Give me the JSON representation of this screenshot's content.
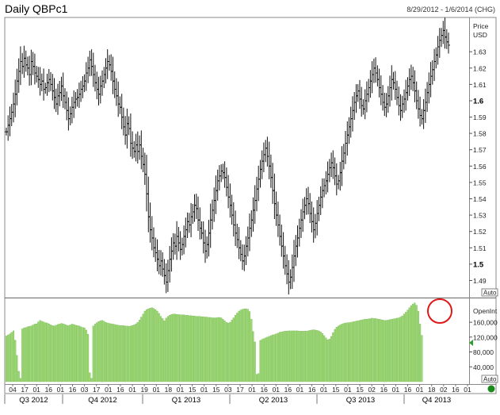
{
  "header": {
    "title": "Daily QBPc1",
    "date_range": "8/29/2012 - 1/6/2014 (CHG)"
  },
  "price_panel": {
    "unit_label_1": "Price",
    "unit_label_2": "USD",
    "auto_label": "Auto"
  },
  "volume_panel": {
    "label": "OpenInt",
    "auto_label": "Auto",
    "colors": {
      "bars": "#9bd870",
      "bar_edge": "#6db04a",
      "circle": "#e01818",
      "marker": "#2e9e2e",
      "dot": "#1a8a1a"
    }
  },
  "chart_data": [
    {
      "type": "ohlc",
      "title": "Daily QBPc1",
      "ylabel": "Price USD",
      "ylim": [
        1.481,
        1.65
      ],
      "y_ticks": [
        "1.63",
        "1.62",
        "1.61",
        "1.6",
        "1.59",
        "1.58",
        "1.57",
        "1.56",
        "1.55",
        "1.54",
        "1.53",
        "1.52",
        "1.51",
        "1.5",
        "1.49"
      ],
      "y_ticks_bold": [
        "1.6",
        "1.5"
      ],
      "x_day_labels": [
        "04",
        "17",
        "01",
        "16",
        "01",
        "16",
        "03",
        "17",
        "01",
        "16",
        "01",
        "19",
        "01",
        "18",
        "01",
        "15",
        "01",
        "15",
        "03",
        "17",
        "01",
        "16",
        "01",
        "16",
        "01",
        "16",
        "01",
        "15",
        "01",
        "15",
        "02",
        "16",
        "01",
        "16",
        "01",
        "18",
        "02",
        "16",
        "01"
      ],
      "x_quarter_labels": [
        "Q3 2012",
        "Q4 2012",
        "Q1 2013",
        "Q2 2013",
        "Q3 2013",
        "Q4 2013"
      ],
      "closes": [
        1.581,
        1.585,
        1.589,
        1.593,
        1.598,
        1.604,
        1.612,
        1.618,
        1.624,
        1.621,
        1.626,
        1.622,
        1.62,
        1.616,
        1.624,
        1.621,
        1.617,
        1.615,
        1.613,
        1.61,
        1.612,
        1.607,
        1.608,
        1.611,
        1.613,
        1.61,
        1.606,
        1.602,
        1.598,
        1.603,
        1.605,
        1.609,
        1.603,
        1.599,
        1.594,
        1.589,
        1.592,
        1.596,
        1.599,
        1.601,
        1.602,
        1.604,
        1.607,
        1.609,
        1.612,
        1.617,
        1.62,
        1.625,
        1.621,
        1.616,
        1.611,
        1.607,
        1.604,
        1.609,
        1.612,
        1.616,
        1.62,
        1.624,
        1.622,
        1.618,
        1.612,
        1.607,
        1.603,
        1.598,
        1.596,
        1.59,
        1.584,
        1.579,
        1.586,
        1.583,
        1.574,
        1.571,
        1.569,
        1.573,
        1.569,
        1.573,
        1.566,
        1.561,
        1.555,
        1.543,
        1.529,
        1.521,
        1.516,
        1.51,
        1.507,
        1.503,
        1.499,
        1.502,
        1.497,
        1.493,
        1.489,
        1.496,
        1.503,
        1.508,
        1.513,
        1.511,
        1.517,
        1.513,
        1.509,
        1.512,
        1.517,
        1.521,
        1.526,
        1.524,
        1.529,
        1.532,
        1.536,
        1.534,
        1.527,
        1.522,
        1.519,
        1.513,
        1.508,
        1.512,
        1.519,
        1.527,
        1.533,
        1.539,
        1.545,
        1.551,
        1.554,
        1.557,
        1.556,
        1.553,
        1.547,
        1.541,
        1.536,
        1.53,
        1.524,
        1.519,
        1.515,
        1.51,
        1.506,
        1.502,
        1.505,
        1.511,
        1.516,
        1.522,
        1.527,
        1.533,
        1.539,
        1.546,
        1.552,
        1.558,
        1.563,
        1.567,
        1.571,
        1.566,
        1.56,
        1.553,
        1.545,
        1.537,
        1.53,
        1.524,
        1.517,
        1.511,
        1.505,
        1.499,
        1.494,
        1.489,
        1.492,
        1.498,
        1.505,
        1.511,
        1.516,
        1.522,
        1.527,
        1.532,
        1.536,
        1.54,
        1.537,
        1.531,
        1.526,
        1.521,
        1.525,
        1.531,
        1.536,
        1.541,
        1.545,
        1.548,
        1.551,
        1.555,
        1.559,
        1.562,
        1.559,
        1.554,
        1.549,
        1.551,
        1.556,
        1.563,
        1.568,
        1.574,
        1.579,
        1.584,
        1.589,
        1.594,
        1.599,
        1.603,
        1.606,
        1.601,
        1.597,
        1.595,
        1.6,
        1.604,
        1.608,
        1.612,
        1.616,
        1.62,
        1.617,
        1.613,
        1.608,
        1.604,
        1.599,
        1.596,
        1.598,
        1.603,
        1.608,
        1.613,
        1.611,
        1.607,
        1.602,
        1.597,
        1.594,
        1.598,
        1.601,
        1.605,
        1.609,
        1.613,
        1.615,
        1.611,
        1.606,
        1.6,
        1.595,
        1.591,
        1.589,
        1.594,
        1.599,
        1.605,
        1.61,
        1.615,
        1.619,
        1.624,
        1.628,
        1.633,
        1.637,
        1.64,
        1.643,
        1.639,
        1.636,
        1.634
      ]
    },
    {
      "type": "bar",
      "title": "",
      "ylabel": "OpenInt",
      "ylim": [
        0,
        220000
      ],
      "y_ticks": [
        "160,000",
        "120,000",
        "80,000",
        "40,000"
      ],
      "values": [
        123000,
        126000,
        129000,
        133000,
        137000,
        112000,
        71000,
        28000,
        9000,
        142000,
        145000,
        146000,
        148000,
        149000,
        150000,
        153000,
        155000,
        156000,
        161000,
        165000,
        163000,
        161000,
        159000,
        158000,
        156000,
        153000,
        151000,
        150000,
        152000,
        154000,
        155000,
        157000,
        156000,
        154000,
        152000,
        151000,
        153000,
        155000,
        154000,
        152000,
        151000,
        150000,
        148000,
        146000,
        145000,
        139000,
        128000,
        24000,
        9000,
        150000,
        155000,
        159000,
        162000,
        164000,
        165000,
        163000,
        160000,
        158000,
        157000,
        156000,
        155000,
        154000,
        153000,
        152000,
        151000,
        151000,
        151000,
        150000,
        150000,
        149000,
        150000,
        151000,
        153000,
        156000,
        160000,
        166000,
        174000,
        182000,
        190000,
        194000,
        196000,
        198000,
        199000,
        197000,
        194000,
        190000,
        184000,
        176000,
        170000,
        164000,
        171000,
        176000,
        179000,
        181000,
        182000,
        182000,
        181000,
        181000,
        180000,
        180000,
        180000,
        179000,
        179000,
        178000,
        178000,
        177000,
        177000,
        176000,
        176000,
        176000,
        175000,
        175000,
        174000,
        174000,
        173000,
        173000,
        172000,
        172000,
        172000,
        173000,
        173000,
        172000,
        168000,
        164000,
        160000,
        158000,
        160000,
        166000,
        172000,
        179000,
        185000,
        190000,
        193000,
        195000,
        196000,
        196000,
        195000,
        189000,
        168000,
        135000,
        107000,
        20000,
        22000,
        111000,
        114000,
        116000,
        118000,
        120000,
        122000,
        124000,
        126000,
        127000,
        129000,
        131000,
        133000,
        134000,
        135000,
        136000,
        136000,
        137000,
        137000,
        137000,
        137000,
        137000,
        137000,
        136000,
        136000,
        136000,
        136000,
        136000,
        137000,
        138000,
        139000,
        140000,
        139000,
        138000,
        137000,
        134000,
        130000,
        124000,
        118000,
        113000,
        115000,
        122000,
        132000,
        141000,
        147000,
        150000,
        153000,
        155000,
        157000,
        158000,
        159000,
        159000,
        160000,
        161000,
        162000,
        163000,
        164000,
        165000,
        166000,
        167000,
        168000,
        168000,
        169000,
        170000,
        171000,
        170000,
        170000,
        169000,
        168000,
        167000,
        166000,
        165000,
        165000,
        166000,
        167000,
        168000,
        169000,
        170000,
        171000,
        172000,
        174000,
        177000,
        182000,
        187000,
        193000,
        199000,
        205000,
        209000,
        212000,
        206000,
        190000,
        155000,
        125000
      ]
    }
  ]
}
